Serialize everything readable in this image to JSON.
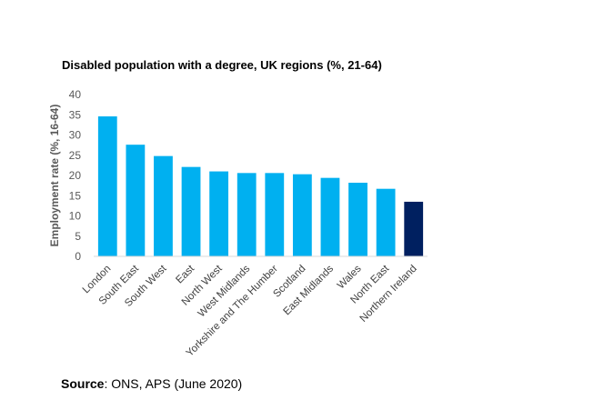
{
  "chart_data": {
    "type": "bar",
    "title": "Disabled population with a degree, UK regions (%, 21-64)",
    "ylabel": "Employment rate (%, 16-64)",
    "xlabel": "",
    "ylim": [
      0,
      40
    ],
    "yticks": [
      "0",
      "5",
      "10",
      "15",
      "20",
      "25",
      "30",
      "35",
      "40"
    ],
    "grid": false,
    "legend": "none",
    "categories": [
      "London",
      "South East",
      "South West",
      "East",
      "North West",
      "West Midlands",
      "Yorkshire and The Humber",
      "Scotland",
      "East Midlands",
      "Wales",
      "North East",
      "Northern Ireland"
    ],
    "values": [
      34.6,
      27.6,
      24.8,
      22.1,
      21.0,
      20.6,
      20.6,
      20.3,
      19.4,
      18.2,
      16.7,
      13.5
    ],
    "colors": [
      "#00B0F0",
      "#00B0F0",
      "#00B0F0",
      "#00B0F0",
      "#00B0F0",
      "#00B0F0",
      "#00B0F0",
      "#00B0F0",
      "#00B0F0",
      "#00B0F0",
      "#00B0F0",
      "#002060"
    ]
  },
  "source": {
    "label": "Source",
    "text": ": ONS, APS (June 2020)"
  }
}
